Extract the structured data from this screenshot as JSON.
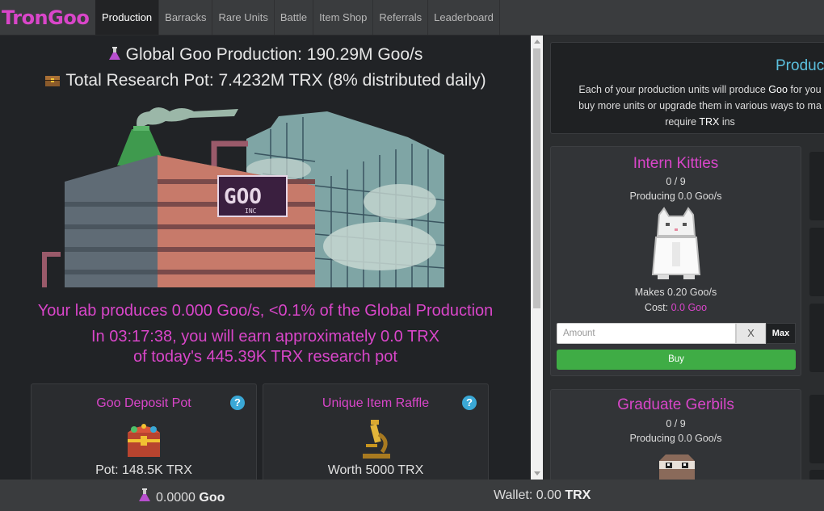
{
  "app": {
    "logo": "TronGoo"
  },
  "nav": {
    "items": [
      {
        "label": "Production",
        "active": true
      },
      {
        "label": "Barracks"
      },
      {
        "label": "Rare Units"
      },
      {
        "label": "Battle"
      },
      {
        "label": "Item Shop"
      },
      {
        "label": "Referrals"
      },
      {
        "label": "Leaderboard"
      }
    ]
  },
  "left": {
    "global_production": "Global Goo Production: 190.29M Goo/s",
    "research_pot": "Total Research Pot: 7.4232M TRX (8% distributed daily)",
    "factory_sign": "GOO",
    "factory_sign_sub": "INC",
    "lab_line": "Your lab produces 0.000 Goo/s, <0.1% of the Global Production",
    "earn_line1": "In 03:17:38, you will earn approximately 0.0 TRX",
    "earn_line2": "of today's 445.39K TRX research pot",
    "cards": [
      {
        "title": "Goo Deposit Pot",
        "value": "Pot: 148.5K TRX",
        "help": "?",
        "icon": "treasure-chest-icon"
      },
      {
        "title": "Unique Item Raffle",
        "value": "Worth 5000 TRX",
        "help": "?",
        "icon": "microscope-icon"
      }
    ]
  },
  "right": {
    "intro": {
      "title": "Produc",
      "line1_pre": "Each of your production units will produce ",
      "line1_bold": "Goo",
      "line1_post": " for you",
      "line2": "buy more units or upgrade them in various ways to ma",
      "line3_pre": "require ",
      "line3_bold": "TRX",
      "line3_post": " ins"
    },
    "units": [
      {
        "name": "Intern Kitties",
        "owned": "0 / 9",
        "producing": "Producing 0.0 Goo/s",
        "makes": "Makes 0.20 Goo/s",
        "cost_label": "Cost:",
        "cost_value": "0.0 Goo",
        "amount_placeholder": "Amount",
        "clear_label": "X",
        "max_label": "Max",
        "buy_label": "Buy",
        "icon": "kitty-icon"
      },
      {
        "name": "Graduate Gerbils",
        "owned": "0 / 9",
        "producing": "Producing 0.0 Goo/s",
        "icon": "gerbil-icon"
      }
    ]
  },
  "footer": {
    "goo_value": "0.0000",
    "goo_unit": "Goo",
    "wallet_label": "Wallet: 0.00",
    "wallet_unit": "TRX"
  },
  "colors": {
    "accent_pink": "#d946c9",
    "info_blue": "#5bc0de",
    "buy_green": "#3fac45"
  }
}
